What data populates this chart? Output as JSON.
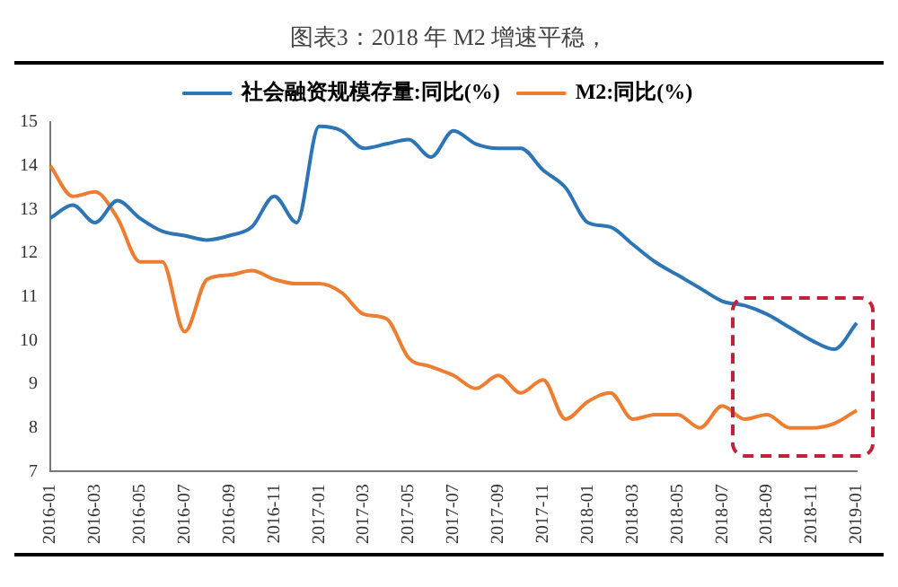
{
  "chart_data": {
    "type": "line",
    "title": "图表3：2018 年 M2 增速平稳，",
    "categories": [
      "2016-01",
      null,
      "2016-03",
      null,
      "2016-05",
      null,
      "2016-07",
      null,
      "2016-09",
      null,
      "2016-11",
      null,
      "2017-01",
      null,
      "2017-03",
      null,
      "2017-05",
      null,
      "2017-07",
      null,
      "2017-09",
      null,
      "2017-11",
      null,
      "2018-01",
      null,
      "2018-03",
      null,
      "2018-05",
      null,
      "2018-07",
      null,
      "2018-09",
      null,
      "2018-11",
      null,
      "2019-01"
    ],
    "series": [
      {
        "name": "社会融资规模存量:同比(%)",
        "color": "#2e75b6",
        "values": [
          12.8,
          13.1,
          12.7,
          13.2,
          12.8,
          12.5,
          12.4,
          12.3,
          12.4,
          12.6,
          13.3,
          12.7,
          14.9,
          14.8,
          14.4,
          14.5,
          14.6,
          14.2,
          14.8,
          14.5,
          14.4,
          14.4,
          13.9,
          13.5,
          12.7,
          12.6,
          12.2,
          11.8,
          11.5,
          11.2,
          10.9,
          10.8,
          10.6,
          10.3,
          10.0,
          9.8,
          10.4
        ]
      },
      {
        "name": "M2:同比(%)",
        "color": "#ed7d31",
        "values": [
          14.0,
          13.3,
          13.4,
          12.8,
          11.8,
          11.8,
          10.2,
          11.4,
          11.5,
          11.6,
          11.4,
          11.3,
          11.3,
          11.1,
          10.6,
          10.5,
          9.6,
          9.4,
          9.2,
          8.9,
          9.2,
          8.8,
          9.1,
          8.2,
          8.6,
          8.8,
          8.2,
          8.3,
          8.3,
          8.0,
          8.5,
          8.2,
          8.3,
          8.0,
          8.0,
          8.1,
          8.4
        ]
      }
    ],
    "ylim": [
      7,
      15
    ],
    "yticks": [
      7,
      8,
      9,
      10,
      11,
      12,
      13,
      14,
      15
    ],
    "grid": false,
    "legend": "top",
    "marker": "none",
    "line_style": "solid"
  }
}
